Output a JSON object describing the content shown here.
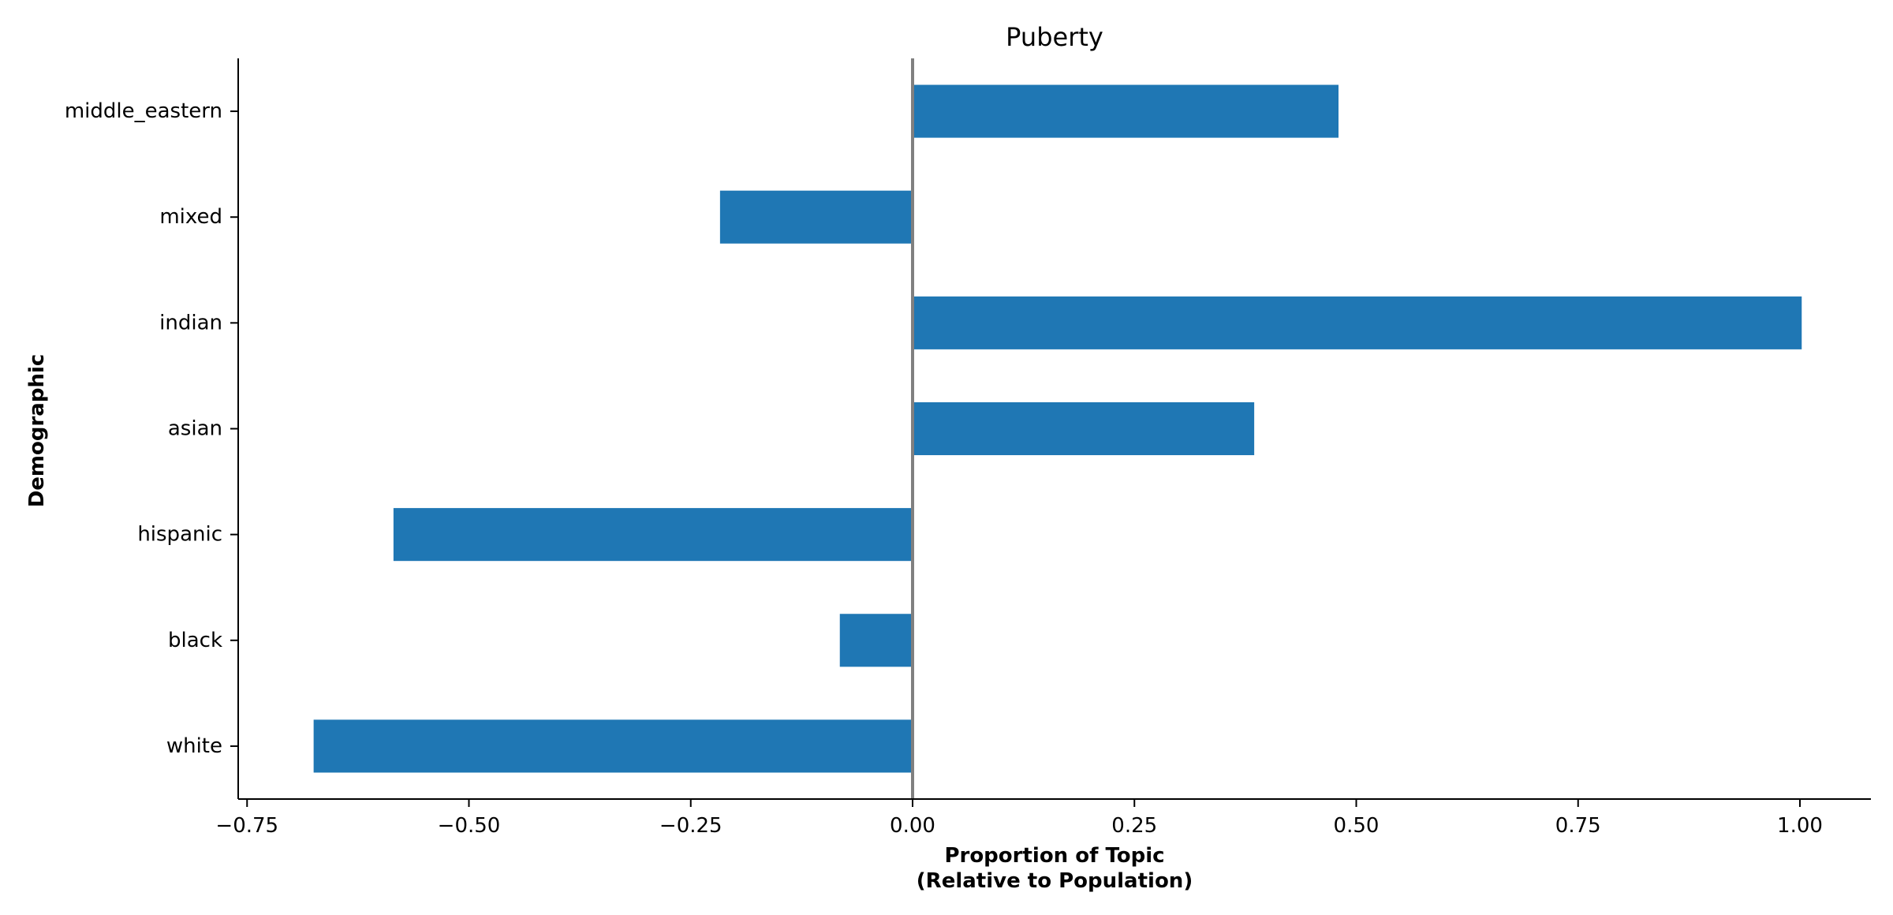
{
  "chart_data": {
    "type": "bar",
    "orientation": "horizontal",
    "title": "Puberty",
    "xlabel_lines": [
      "Proportion of Topic",
      "(Relative to Population)"
    ],
    "ylabel": "Demographic",
    "categories": [
      "white",
      "black",
      "hispanic",
      "asian",
      "indian",
      "mixed",
      "middle_eastern"
    ],
    "values": [
      -0.675,
      -0.082,
      -0.585,
      0.385,
      1.002,
      -0.217,
      0.48
    ],
    "xlim": [
      -0.76,
      1.08
    ],
    "xticks": [
      -0.75,
      -0.5,
      -0.25,
      0.0,
      0.25,
      0.5,
      0.75,
      1.0
    ],
    "xtick_labels": [
      "−0.75",
      "−0.50",
      "−0.25",
      "0.00",
      "0.25",
      "0.50",
      "0.75",
      "1.00"
    ],
    "zero_line": true,
    "grid": false,
    "bar_color": "#1f77b4",
    "zero_line_color": "#808080"
  }
}
